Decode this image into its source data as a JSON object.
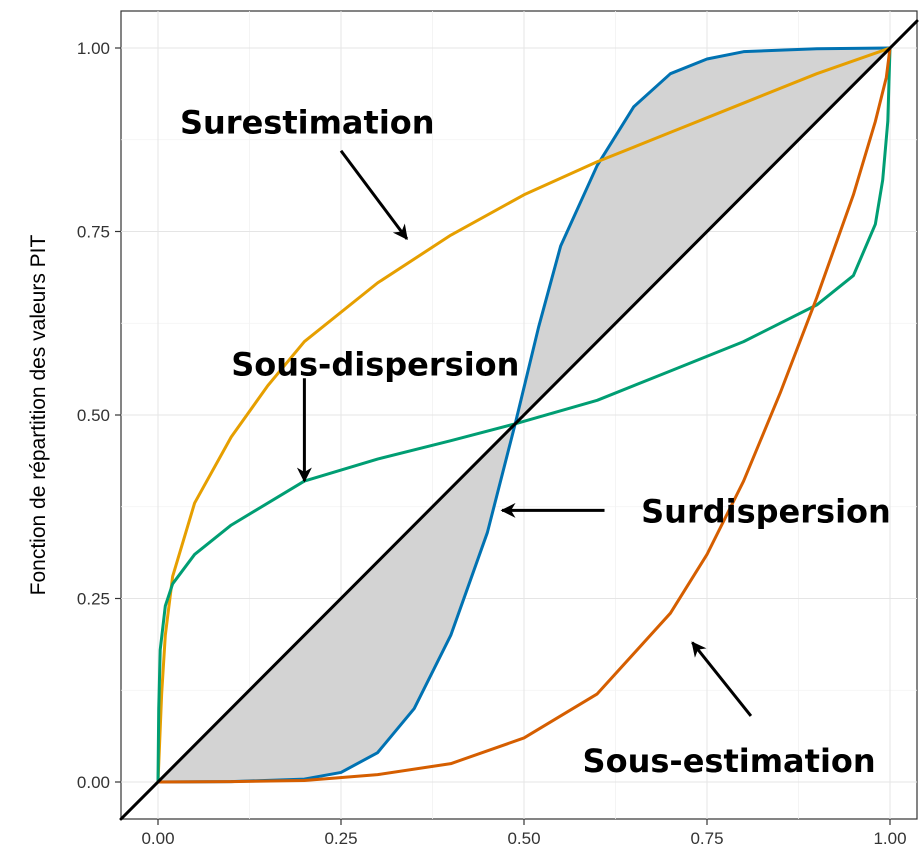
{
  "chart_data": {
    "type": "line",
    "title": "",
    "xlabel": "",
    "ylabel": "Fonction de répartition des valeurs PIT",
    "xlim": [
      0,
      1
    ],
    "ylim": [
      0,
      1
    ],
    "x_ticks": [
      "0.00",
      "0.25",
      "0.50",
      "0.75",
      "1.00"
    ],
    "y_ticks": [
      "0.00",
      "0.25",
      "0.50",
      "0.75",
      "1.00"
    ],
    "grid": true,
    "legend": "none",
    "series": [
      {
        "color": "#000000",
        "x": [
          0,
          1
        ],
        "y": [
          0,
          1
        ]
      },
      {
        "color": "#0072B2",
        "x": [
          0,
          0.1,
          0.2,
          0.25,
          0.3,
          0.35,
          0.4,
          0.45,
          0.488,
          0.52,
          0.55,
          0.6,
          0.65,
          0.7,
          0.75,
          0.8,
          0.9,
          1
        ],
        "y": [
          0,
          0.0005,
          0.004,
          0.013,
          0.04,
          0.1,
          0.2,
          0.34,
          0.488,
          0.62,
          0.73,
          0.84,
          0.92,
          0.965,
          0.985,
          0.995,
          0.999,
          1
        ]
      },
      {
        "color": "#E69F00",
        "x": [
          0,
          0.005,
          0.01,
          0.02,
          0.05,
          0.1,
          0.15,
          0.2,
          0.3,
          0.4,
          0.5,
          0.6,
          0.7,
          0.8,
          0.9,
          1
        ],
        "y": [
          0,
          0.12,
          0.2,
          0.28,
          0.38,
          0.47,
          0.54,
          0.6,
          0.68,
          0.745,
          0.8,
          0.845,
          0.885,
          0.925,
          0.965,
          1
        ]
      },
      {
        "color": "#009E73",
        "x": [
          0,
          0.001,
          0.003,
          0.01,
          0.02,
          0.05,
          0.1,
          0.2,
          0.3,
          0.4,
          0.488,
          0.6,
          0.7,
          0.8,
          0.9,
          0.95,
          0.98,
          0.99,
          0.997,
          1
        ],
        "y": [
          0,
          0.1,
          0.18,
          0.24,
          0.27,
          0.31,
          0.35,
          0.41,
          0.44,
          0.465,
          0.488,
          0.52,
          0.56,
          0.6,
          0.65,
          0.69,
          0.76,
          0.82,
          0.9,
          1
        ]
      },
      {
        "color": "#D55E00",
        "x": [
          0,
          0.1,
          0.2,
          0.3,
          0.4,
          0.5,
          0.6,
          0.7,
          0.75,
          0.8,
          0.85,
          0.9,
          0.95,
          0.98,
          0.995,
          1
        ],
        "y": [
          0,
          0.0005,
          0.002,
          0.01,
          0.025,
          0.06,
          0.12,
          0.23,
          0.31,
          0.41,
          0.53,
          0.66,
          0.8,
          0.9,
          0.96,
          1
        ]
      }
    ],
    "annotations": [
      {
        "text": "Surestimation",
        "x": 0.03,
        "y": 0.9,
        "arrow_from": [
          0.25,
          0.86
        ],
        "arrow_to": [
          0.34,
          0.74
        ]
      },
      {
        "text": "Sous-dispersion",
        "x": 0.1,
        "y": 0.57,
        "arrow_from": [
          0.2,
          0.55
        ],
        "arrow_to": [
          0.2,
          0.41
        ]
      },
      {
        "text": "Surdispersion",
        "x": 0.66,
        "y": 0.37,
        "arrow_from": [
          0.61,
          0.37
        ],
        "arrow_to": [
          0.47,
          0.37
        ]
      },
      {
        "text": "Sous-estimation",
        "x": 0.58,
        "y": 0.03,
        "arrow_from": [
          0.81,
          0.09
        ],
        "arrow_to": [
          0.73,
          0.19
        ]
      }
    ]
  }
}
